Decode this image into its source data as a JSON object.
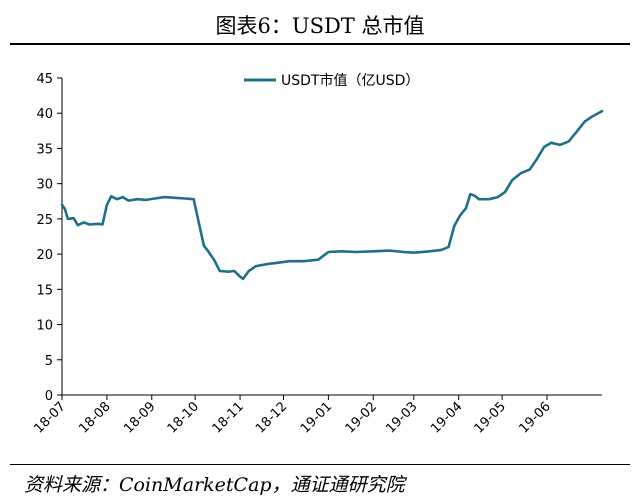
{
  "title": "图表6：USDT 总市值",
  "source": "资料来源：CoinMarketCap，通证通研究院",
  "colors": {
    "line": "#1f6f8b",
    "axis": "#000000"
  },
  "chart_data": {
    "type": "line",
    "title": "图表6：USDT 总市值",
    "xlabel": "",
    "ylabel": "",
    "ylim": [
      0,
      45
    ],
    "yticks": [
      0,
      5,
      10,
      15,
      20,
      25,
      30,
      35,
      40,
      45
    ],
    "xlim": [
      "2018-07-01",
      "2019-07-09"
    ],
    "xtick_labels": [
      "18-07",
      "18-08",
      "18-09",
      "18-10",
      "18-11",
      "18-12",
      "19-01",
      "19-02",
      "19-03",
      "19-04",
      "19-05",
      "19-06"
    ],
    "xtick_dates": [
      "2018-07-01",
      "2018-08-01",
      "2018-09-01",
      "2018-10-01",
      "2018-11-01",
      "2018-12-01",
      "2019-01-01",
      "2019-02-01",
      "2019-03-01",
      "2019-04-01",
      "2019-05-01",
      "2019-06-01"
    ],
    "grid": false,
    "legend": "top-center",
    "series": [
      {
        "name": "USDT市值（亿USD）",
        "points": [
          [
            "2018-07-01",
            27.0
          ],
          [
            "2018-07-03",
            26.4
          ],
          [
            "2018-07-05",
            25.0
          ],
          [
            "2018-07-09",
            25.1
          ],
          [
            "2018-07-12",
            24.1
          ],
          [
            "2018-07-16",
            24.5
          ],
          [
            "2018-07-20",
            24.2
          ],
          [
            "2018-07-26",
            24.3
          ],
          [
            "2018-07-29",
            24.2
          ],
          [
            "2018-08-01",
            27.0
          ],
          [
            "2018-08-04",
            28.2
          ],
          [
            "2018-08-08",
            27.8
          ],
          [
            "2018-08-12",
            28.1
          ],
          [
            "2018-08-16",
            27.6
          ],
          [
            "2018-08-22",
            27.8
          ],
          [
            "2018-08-28",
            27.7
          ],
          [
            "2018-09-03",
            27.9
          ],
          [
            "2018-09-10",
            28.1
          ],
          [
            "2018-09-17",
            28.0
          ],
          [
            "2018-09-24",
            27.9
          ],
          [
            "2018-09-30",
            27.8
          ],
          [
            "2018-10-04",
            24.0
          ],
          [
            "2018-10-07",
            21.2
          ],
          [
            "2018-10-10",
            20.4
          ],
          [
            "2018-10-14",
            19.2
          ],
          [
            "2018-10-18",
            17.6
          ],
          [
            "2018-10-24",
            17.5
          ],
          [
            "2018-10-28",
            17.6
          ],
          [
            "2018-11-01",
            16.8
          ],
          [
            "2018-11-03",
            16.5
          ],
          [
            "2018-11-07",
            17.6
          ],
          [
            "2018-11-12",
            18.3
          ],
          [
            "2018-11-20",
            18.6
          ],
          [
            "2018-11-28",
            18.8
          ],
          [
            "2018-12-05",
            19.0
          ],
          [
            "2018-12-15",
            19.0
          ],
          [
            "2018-12-25",
            19.2
          ],
          [
            "2019-01-01",
            20.3
          ],
          [
            "2019-01-10",
            20.4
          ],
          [
            "2019-01-20",
            20.3
          ],
          [
            "2019-02-01",
            20.4
          ],
          [
            "2019-02-12",
            20.5
          ],
          [
            "2019-02-22",
            20.3
          ],
          [
            "2019-03-01",
            20.2
          ],
          [
            "2019-03-12",
            20.4
          ],
          [
            "2019-03-20",
            20.6
          ],
          [
            "2019-03-25",
            21.0
          ],
          [
            "2019-03-29",
            24.0
          ],
          [
            "2019-04-02",
            25.5
          ],
          [
            "2019-04-06",
            26.5
          ],
          [
            "2019-04-09",
            28.5
          ],
          [
            "2019-04-12",
            28.3
          ],
          [
            "2019-04-15",
            27.8
          ],
          [
            "2019-04-22",
            27.8
          ],
          [
            "2019-04-28",
            28.1
          ],
          [
            "2019-05-03",
            28.8
          ],
          [
            "2019-05-08",
            30.5
          ],
          [
            "2019-05-14",
            31.5
          ],
          [
            "2019-05-20",
            32.0
          ],
          [
            "2019-05-25",
            33.5
          ],
          [
            "2019-05-30",
            35.2
          ],
          [
            "2019-06-04",
            35.8
          ],
          [
            "2019-06-10",
            35.5
          ],
          [
            "2019-06-16",
            36.0
          ],
          [
            "2019-06-22",
            37.5
          ],
          [
            "2019-06-27",
            38.8
          ],
          [
            "2019-07-02",
            39.5
          ],
          [
            "2019-07-09",
            40.3
          ]
        ]
      }
    ]
  }
}
